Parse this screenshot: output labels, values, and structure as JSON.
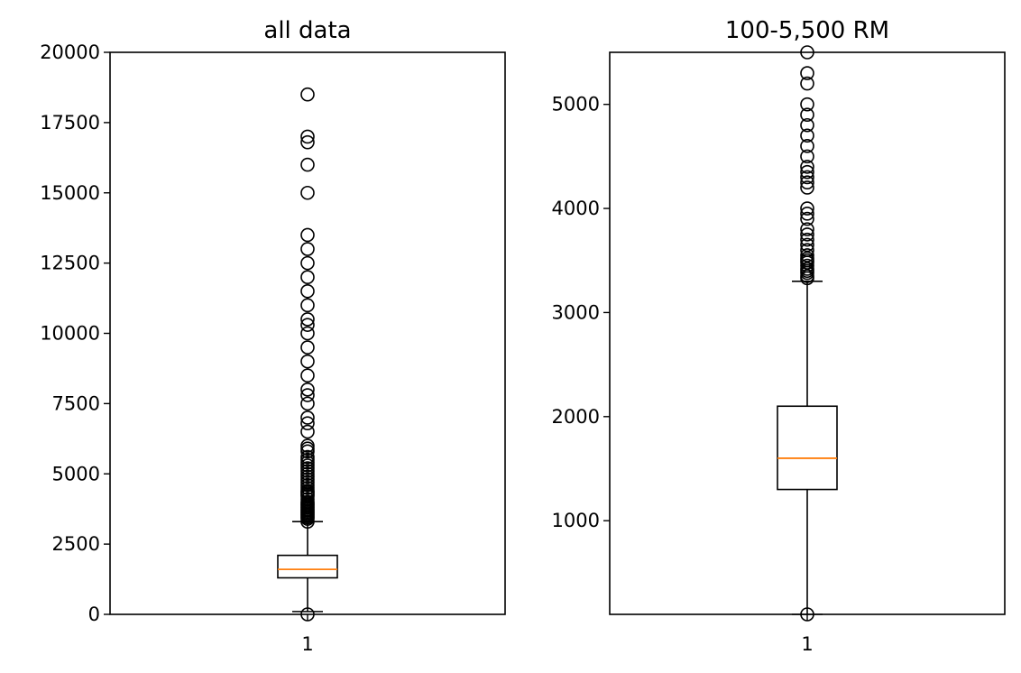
{
  "chart_data": [
    {
      "type": "box",
      "title": "all data",
      "xlabel": "",
      "ylabel": "",
      "categories": [
        "1"
      ],
      "ylim": [
        0,
        20000
      ],
      "yticks": [
        0,
        2500,
        5000,
        7500,
        10000,
        12500,
        15000,
        17500,
        20000
      ],
      "grid": false,
      "box": {
        "whisker_low": 100,
        "q1": 1300,
        "median": 1600,
        "q3": 2100,
        "whisker_high": 3300
      },
      "outliers": [
        0,
        3300,
        3400,
        3450,
        3500,
        3550,
        3600,
        3650,
        3700,
        3750,
        3800,
        3850,
        3900,
        3950,
        4000,
        4100,
        4200,
        4250,
        4300,
        4350,
        4400,
        4500,
        4600,
        4700,
        4800,
        4900,
        5000,
        5100,
        5200,
        5300,
        5400,
        5500,
        5600,
        5800,
        5900,
        6000,
        6500,
        6800,
        7000,
        7500,
        7800,
        8000,
        8500,
        9000,
        9500,
        10000,
        10300,
        10500,
        11000,
        11500,
        12000,
        12500,
        13000,
        13500,
        15000,
        16000,
        16800,
        17000,
        18500
      ]
    },
    {
      "type": "box",
      "title": "100-5,500 RM",
      "xlabel": "",
      "ylabel": "",
      "categories": [
        "1"
      ],
      "ylim": [
        100,
        5500
      ],
      "yticks": [
        1000,
        2000,
        3000,
        4000,
        5000
      ],
      "grid": false,
      "box": {
        "whisker_low": 100,
        "q1": 1300,
        "median": 1600,
        "q3": 2100,
        "whisker_high": 3300
      },
      "outliers": [
        100,
        3330,
        3350,
        3380,
        3400,
        3420,
        3450,
        3480,
        3500,
        3520,
        3550,
        3600,
        3650,
        3700,
        3750,
        3800,
        3900,
        3950,
        4000,
        4200,
        4250,
        4300,
        4350,
        4400,
        4500,
        4600,
        4700,
        4800,
        4900,
        5000,
        5200,
        5300,
        5500
      ]
    }
  ],
  "colors": {
    "box": "#000000",
    "median": "#ff7f0e",
    "flier_fill": "none"
  }
}
